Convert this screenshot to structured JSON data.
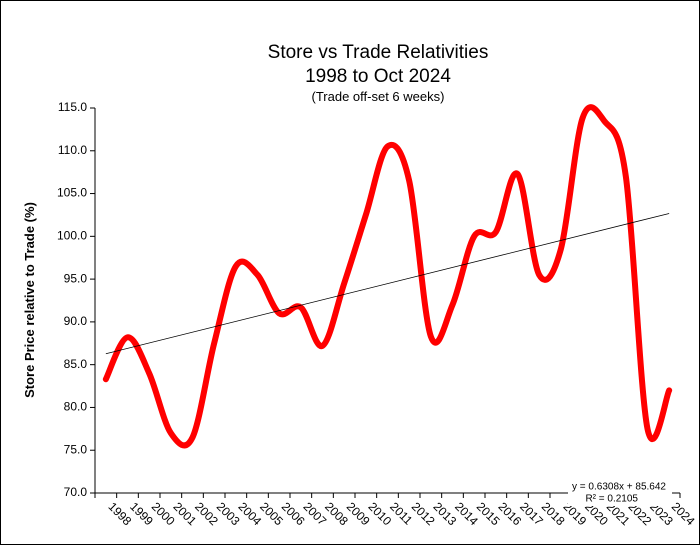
{
  "chart_data": {
    "type": "line",
    "title": "Store vs Trade Relativities",
    "subtitle": "1998 to Oct 2024",
    "note": "(Trade off-set 6 weeks)",
    "y_label": "Store Price relative to Trade (%)",
    "categories": [
      "1998",
      "1999",
      "2000",
      "2001",
      "2002",
      "2003",
      "2004",
      "2005",
      "2006",
      "2007",
      "2008",
      "2009",
      "2010",
      "2011",
      "2012",
      "2013",
      "2014",
      "2015",
      "2016",
      "2017",
      "2018",
      "2019",
      "2020",
      "2021",
      "2022",
      "2023",
      "2024"
    ],
    "series": [
      {
        "color": "#ff0000",
        "values": [
          83.3,
          88.2,
          84.0,
          77.0,
          76.5,
          87.5,
          96.5,
          95.5,
          91.0,
          91.7,
          87.2,
          94.5,
          102.5,
          110.5,
          106.5,
          88.3,
          92.0,
          100.0,
          100.5,
          107.3,
          95.5,
          98.5,
          113.8,
          113.5,
          107.0,
          77.5,
          82.0
        ]
      }
    ],
    "trendline": {
      "slope": 0.6308,
      "intercept": 85.642,
      "color": "#000000",
      "equation": "y = 0.6308x + 85.642",
      "r2": "R² = 0.2105"
    },
    "ylim": [
      70,
      115
    ],
    "yticks": [
      {
        "value": 70,
        "label": "70.0"
      },
      {
        "value": 75,
        "label": "75.0"
      },
      {
        "value": 80,
        "label": "80.0"
      },
      {
        "value": 85,
        "label": "85.0"
      },
      {
        "value": 90,
        "label": "90.0"
      },
      {
        "value": 95,
        "label": "95.0"
      },
      {
        "value": 100,
        "label": "100.0"
      },
      {
        "value": 105,
        "label": "105.0"
      },
      {
        "value": 110,
        "label": "110.0"
      },
      {
        "value": 115,
        "label": "115.0"
      }
    ],
    "grid": false
  }
}
